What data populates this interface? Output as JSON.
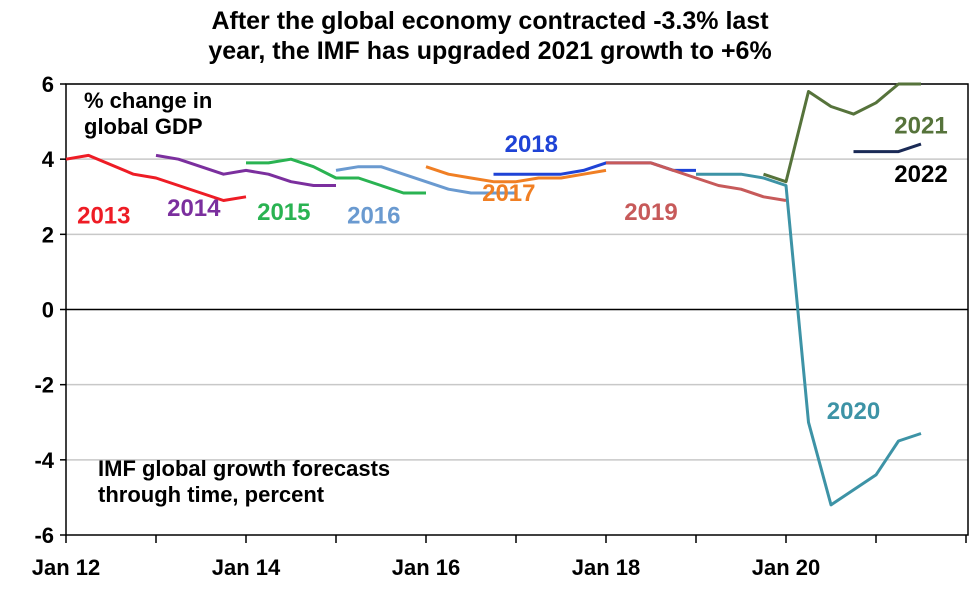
{
  "chart_data": {
    "type": "line",
    "title_line1": "After the global economy contracted -3.3% last",
    "title_line2": "year, the IMF has upgraded 2021 growth to +6%",
    "ylim": [
      -6,
      6
    ],
    "xlim": [
      2012.0,
      2022.0
    ],
    "y_ticks": [
      "6",
      "4",
      "2",
      "0",
      "-2",
      "-4",
      "-6"
    ],
    "x_ticks": [
      {
        "label": "Jan 12",
        "x": 2012
      },
      {
        "label": "Jan 14",
        "x": 2014
      },
      {
        "label": "Jan 16",
        "x": 2016
      },
      {
        "label": "Jan 18",
        "x": 2018
      },
      {
        "label": "Jan 20",
        "x": 2020
      }
    ],
    "annotation_top": [
      "% change in",
      "global GDP"
    ],
    "annotation_bottom": [
      "IMF global growth forecasts",
      "through time, percent"
    ],
    "series": [
      {
        "name": "2013",
        "color": "#ee1c25",
        "x": [
          2012.0,
          2012.25,
          2012.75,
          2013.0,
          2013.25,
          2013.5,
          2013.75,
          2014.0
        ],
        "y": [
          4.0,
          4.1,
          3.6,
          3.5,
          3.3,
          3.1,
          2.9,
          3.0
        ]
      },
      {
        "name": "2014",
        "color": "#7b2f9e",
        "x": [
          2013.0,
          2013.25,
          2013.75,
          2014.0,
          2014.25,
          2014.5,
          2014.75,
          2015.0
        ],
        "y": [
          4.1,
          4.0,
          3.6,
          3.7,
          3.6,
          3.4,
          3.3,
          3.3
        ]
      },
      {
        "name": "2015",
        "color": "#2ab352",
        "x": [
          2014.0,
          2014.25,
          2014.5,
          2014.75,
          2015.0,
          2015.25,
          2015.5,
          2015.75,
          2016.0
        ],
        "y": [
          3.9,
          3.9,
          4.0,
          3.8,
          3.5,
          3.5,
          3.3,
          3.1,
          3.1
        ]
      },
      {
        "name": "2016",
        "color": "#6a9ad0",
        "x": [
          2015.0,
          2015.25,
          2015.5,
          2015.75,
          2016.0,
          2016.25,
          2016.5,
          2016.75,
          2017.0
        ],
        "y": [
          3.7,
          3.8,
          3.8,
          3.6,
          3.4,
          3.2,
          3.1,
          3.1,
          3.1
        ]
      },
      {
        "name": "2017",
        "color": "#f07f24",
        "x": [
          2016.0,
          2016.25,
          2016.5,
          2016.75,
          2017.0,
          2017.25,
          2017.5,
          2017.75,
          2018.0
        ],
        "y": [
          3.8,
          3.6,
          3.5,
          3.4,
          3.4,
          3.5,
          3.5,
          3.6,
          3.7
        ]
      },
      {
        "name": "2018",
        "color": "#1f43d6",
        "x": [
          2016.75,
          2017.0,
          2017.25,
          2017.5,
          2017.75,
          2018.0,
          2018.25,
          2018.5,
          2018.75,
          2019.0
        ],
        "y": [
          3.6,
          3.6,
          3.6,
          3.6,
          3.7,
          3.9,
          3.9,
          3.9,
          3.7,
          3.7
        ]
      },
      {
        "name": "2019",
        "color": "#c75a5a",
        "x": [
          2018.0,
          2018.25,
          2018.5,
          2018.75,
          2019.0,
          2019.25,
          2019.5,
          2019.75,
          2020.0
        ],
        "y": [
          3.9,
          3.9,
          3.9,
          3.7,
          3.5,
          3.3,
          3.2,
          3.0,
          2.9
        ]
      },
      {
        "name": "2020",
        "color": "#3d93a6",
        "x": [
          2019.0,
          2019.25,
          2019.5,
          2019.75,
          2020.0,
          2020.25,
          2020.5,
          2020.75,
          2021.0,
          2021.25,
          2021.5
        ],
        "y": [
          3.6,
          3.6,
          3.6,
          3.5,
          3.3,
          -3.0,
          -5.2,
          -4.8,
          -4.4,
          -3.5,
          -3.3
        ]
      },
      {
        "name": "2021",
        "color": "#56733b",
        "x": [
          2019.75,
          2020.0,
          2020.25,
          2020.5,
          2020.75,
          2021.0,
          2021.25,
          2021.5
        ],
        "y": [
          3.6,
          3.4,
          5.8,
          5.4,
          5.2,
          5.5,
          6.0,
          6.0
        ]
      },
      {
        "name": "2022",
        "color": "#1a2a56",
        "x": [
          2020.75,
          2021.0,
          2021.25,
          2021.5
        ],
        "y": [
          4.2,
          4.2,
          4.2,
          4.4
        ]
      }
    ],
    "series_labels": [
      {
        "text": "2013",
        "color": "#ee1c25",
        "x": 2012.42,
        "y": 2.5
      },
      {
        "text": "2014",
        "color": "#7b2f9e",
        "x": 2013.42,
        "y": 2.7
      },
      {
        "text": "2015",
        "color": "#2ab352",
        "x": 2014.42,
        "y": 2.6
      },
      {
        "text": "2016",
        "color": "#6a9ad0",
        "x": 2015.42,
        "y": 2.5
      },
      {
        "text": "2017",
        "color": "#f07f24",
        "x": 2016.92,
        "y": 3.1
      },
      {
        "text": "2018",
        "color": "#1f43d6",
        "x": 2017.17,
        "y": 4.4
      },
      {
        "text": "2019",
        "color": "#c75a5a",
        "x": 2018.5,
        "y": 2.6
      },
      {
        "text": "2020",
        "color": "#3d93a6",
        "x": 2020.75,
        "y": -2.7
      },
      {
        "text": "2021",
        "color": "#56733b",
        "x": 2021.5,
        "y": 4.9
      },
      {
        "text": "2022",
        "color": "#000000",
        "x": 2021.5,
        "y": 3.6
      }
    ]
  }
}
